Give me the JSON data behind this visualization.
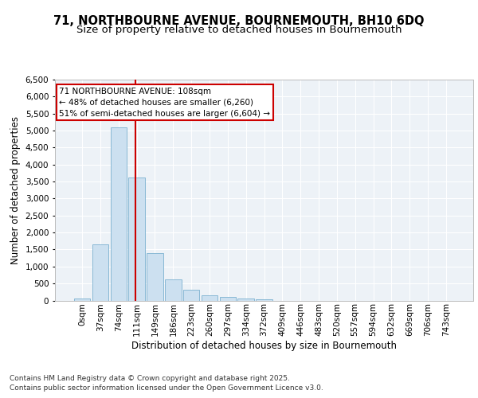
{
  "title_line1": "71, NORTHBOURNE AVENUE, BOURNEMOUTH, BH10 6DQ",
  "title_line2": "Size of property relative to detached houses in Bournemouth",
  "xlabel": "Distribution of detached houses by size in Bournemouth",
  "ylabel": "Number of detached properties",
  "bar_labels": [
    "0sqm",
    "37sqm",
    "74sqm",
    "111sqm",
    "149sqm",
    "186sqm",
    "223sqm",
    "260sqm",
    "297sqm",
    "334sqm",
    "372sqm",
    "409sqm",
    "446sqm",
    "483sqm",
    "520sqm",
    "557sqm",
    "594sqm",
    "632sqm",
    "669sqm",
    "706sqm",
    "743sqm"
  ],
  "bar_values": [
    60,
    1650,
    5100,
    3620,
    1400,
    610,
    310,
    150,
    110,
    70,
    30,
    0,
    0,
    0,
    0,
    0,
    0,
    0,
    0,
    0,
    0
  ],
  "bar_color": "#cce0f0",
  "bar_edge_color": "#7ab0d0",
  "vline_x": 2.93,
  "vline_color": "#cc0000",
  "annotation_title": "71 NORTHBOURNE AVENUE: 108sqm",
  "annotation_line2": "← 48% of detached houses are smaller (6,260)",
  "annotation_line3": "51% of semi-detached houses are larger (6,604) →",
  "annotation_box_color": "#cc0000",
  "ylim": [
    0,
    6500
  ],
  "yticks": [
    0,
    500,
    1000,
    1500,
    2000,
    2500,
    3000,
    3500,
    4000,
    4500,
    5000,
    5500,
    6000,
    6500
  ],
  "footnote1": "Contains HM Land Registry data © Crown copyright and database right 2025.",
  "footnote2": "Contains public sector information licensed under the Open Government Licence v3.0.",
  "bg_color": "#edf2f7",
  "grid_color": "#ffffff",
  "title_fontsize": 10.5,
  "subtitle_fontsize": 9.5,
  "axis_label_fontsize": 8.5,
  "tick_fontsize": 7.5,
  "annotation_fontsize": 7.5,
  "footnote_fontsize": 6.5
}
